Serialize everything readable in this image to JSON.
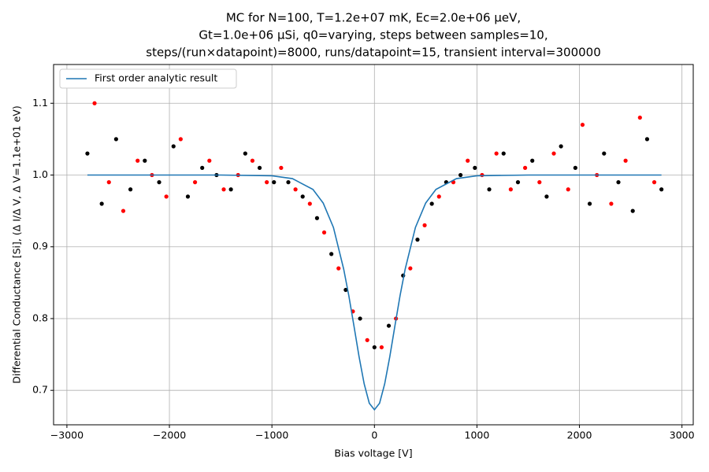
{
  "chart_data": {
    "type": "scatter",
    "title": [
      "MC for N=100, T=1.2e+07 mK, Ec=2.0e+06 μeV,",
      "Gt=1.0e+06 μSi, q0=varying, steps between samples=10,",
      "steps/(run×datapoint)=8000, runs/datapoint=15, transient interval=300000"
    ],
    "x_label": "Bias voltage [V]",
    "y_label": "Differential Conductance [Si], (Δ I/Δ V, Δ V=1.1e+01 eV)",
    "xlim": [
      -3130,
      3110
    ],
    "ylim": [
      0.652,
      1.154
    ],
    "xticks": [
      {
        "value": -3000,
        "label": "−3000"
      },
      {
        "value": -2000,
        "label": "−2000"
      },
      {
        "value": -1000,
        "label": "−1000"
      },
      0,
      1000,
      2000,
      3000
    ],
    "yticks": [
      0.7,
      0.8,
      0.9,
      {
        "value": 1.0,
        "label": "1.0"
      },
      1.1
    ],
    "grid": true,
    "legend": "upper-left",
    "series": [
      {
        "name": "First order analytic result",
        "type": "line",
        "color": "#1f77b4",
        "x": [
          -2800,
          -2000,
          -1500,
          -1000,
          -800,
          -600,
          -500,
          -400,
          -300,
          -250,
          -200,
          -150,
          -100,
          -50,
          0,
          50,
          100,
          150,
          200,
          250,
          300,
          400,
          500,
          600,
          800,
          1000,
          1500,
          2000,
          2800
        ],
        "values": [
          1.0,
          1.0,
          1.0,
          0.999,
          0.995,
          0.98,
          0.961,
          0.927,
          0.869,
          0.832,
          0.79,
          0.747,
          0.709,
          0.682,
          0.673,
          0.682,
          0.709,
          0.747,
          0.79,
          0.832,
          0.869,
          0.927,
          0.961,
          0.98,
          0.995,
          0.999,
          1.0,
          1.0,
          1.0
        ]
      },
      {
        "type": "scatter",
        "color": "#000000",
        "x": [
          -2800,
          -2660,
          -2520,
          -2380,
          -2240,
          -2100,
          -1960,
          -1820,
          -1680,
          -1540,
          -1400,
          -1260,
          -1120,
          -980,
          -840,
          -700,
          -560,
          -420,
          -280,
          -140,
          0,
          140,
          280,
          420,
          560,
          700,
          840,
          980,
          1120,
          1260,
          1400,
          1540,
          1680,
          1820,
          1960,
          2100,
          2240,
          2380,
          2520,
          2660,
          2800
        ],
        "values": [
          1.03,
          0.96,
          1.05,
          0.98,
          1.02,
          0.99,
          1.04,
          0.97,
          1.01,
          1.0,
          0.98,
          1.03,
          1.01,
          0.99,
          0.99,
          0.97,
          0.94,
          0.89,
          0.84,
          0.8,
          0.76,
          0.79,
          0.86,
          0.91,
          0.96,
          0.99,
          1.0,
          1.01,
          0.98,
          1.03,
          0.99,
          1.02,
          0.97,
          1.04,
          1.01,
          0.96,
          1.03,
          0.99,
          0.95,
          1.05,
          0.98
        ]
      },
      {
        "type": "scatter",
        "color": "#ff0000",
        "x": [
          -2730,
          -2590,
          -2450,
          -2310,
          -2170,
          -2030,
          -1890,
          -1750,
          -1610,
          -1470,
          -1330,
          -1190,
          -1050,
          -910,
          -770,
          -630,
          -490,
          -350,
          -210,
          -70,
          70,
          210,
          350,
          490,
          630,
          770,
          910,
          1050,
          1190,
          1330,
          1470,
          1610,
          1750,
          1890,
          2030,
          2170,
          2310,
          2450,
          2590,
          2730
        ],
        "values": [
          1.1,
          0.99,
          0.95,
          1.02,
          1.0,
          0.97,
          1.05,
          0.99,
          1.02,
          0.98,
          1.0,
          1.02,
          0.99,
          1.01,
          0.98,
          0.96,
          0.92,
          0.87,
          0.81,
          0.77,
          0.76,
          0.8,
          0.87,
          0.93,
          0.97,
          0.99,
          1.02,
          1.0,
          1.03,
          0.98,
          1.01,
          0.99,
          1.03,
          0.98,
          1.07,
          1.0,
          0.96,
          1.02,
          1.08,
          0.99
        ]
      }
    ]
  }
}
